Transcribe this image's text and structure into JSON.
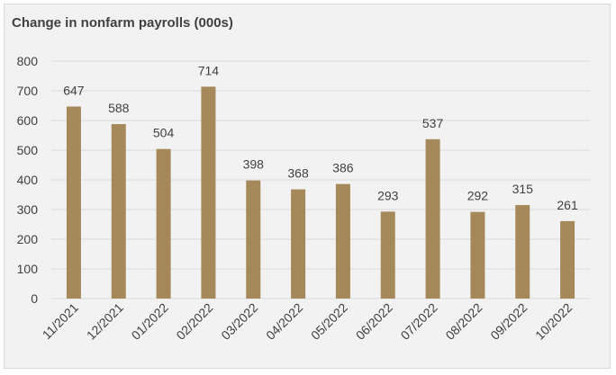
{
  "chart_data": {
    "type": "bar",
    "title": "Change in nonfarm payrolls (000s)",
    "categories": [
      "11/2021",
      "12/2021",
      "01/2022",
      "02/2022",
      "03/2022",
      "04/2022",
      "05/2022",
      "06/2022",
      "07/2022",
      "08/2022",
      "09/2022",
      "10/2022"
    ],
    "values": [
      647,
      588,
      504,
      714,
      398,
      368,
      386,
      293,
      537,
      292,
      315,
      261
    ],
    "ylim": [
      0,
      800
    ],
    "yticks": [
      "0",
      "100",
      "200",
      "300",
      "400",
      "500",
      "600",
      "700",
      "800"
    ],
    "grid": true,
    "bar_color": "#a6895a",
    "gridline_color": "#d9d9d9",
    "background_color": "#f2f2f2"
  }
}
